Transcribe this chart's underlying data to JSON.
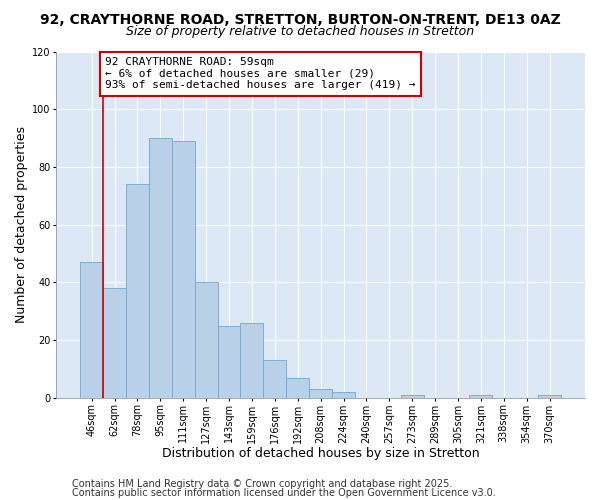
{
  "title": "92, CRAYTHORNE ROAD, STRETTON, BURTON-ON-TRENT, DE13 0AZ",
  "subtitle": "Size of property relative to detached houses in Stretton",
  "xlabel": "Distribution of detached houses by size in Stretton",
  "ylabel": "Number of detached properties",
  "bar_labels": [
    "46sqm",
    "62sqm",
    "78sqm",
    "95sqm",
    "111sqm",
    "127sqm",
    "143sqm",
    "159sqm",
    "176sqm",
    "192sqm",
    "208sqm",
    "224sqm",
    "240sqm",
    "257sqm",
    "273sqm",
    "289sqm",
    "305sqm",
    "321sqm",
    "338sqm",
    "354sqm",
    "370sqm"
  ],
  "bar_values": [
    47,
    38,
    74,
    90,
    89,
    40,
    25,
    26,
    13,
    7,
    3,
    2,
    0,
    0,
    1,
    0,
    0,
    1,
    0,
    0,
    1
  ],
  "bar_color": "#b8d0e8",
  "bar_edge_color": "#6aaad4",
  "marker_line_color": "#cc0000",
  "annotation_text": "92 CRAYTHORNE ROAD: 59sqm\n← 6% of detached houses are smaller (29)\n93% of semi-detached houses are larger (419) →",
  "annotation_box_edge": "#cc0000",
  "ylim": [
    0,
    120
  ],
  "yticks": [
    0,
    20,
    40,
    60,
    80,
    100,
    120
  ],
  "footer1": "Contains HM Land Registry data © Crown copyright and database right 2025.",
  "footer2": "Contains public sector information licensed under the Open Government Licence v3.0.",
  "figure_bg_color": "#ffffff",
  "plot_bg_color": "#dce8f5",
  "grid_color": "#ffffff",
  "title_fontsize": 10,
  "subtitle_fontsize": 9,
  "annotation_fontsize": 8,
  "axis_label_fontsize": 9,
  "tick_fontsize": 7,
  "footer_fontsize": 7
}
